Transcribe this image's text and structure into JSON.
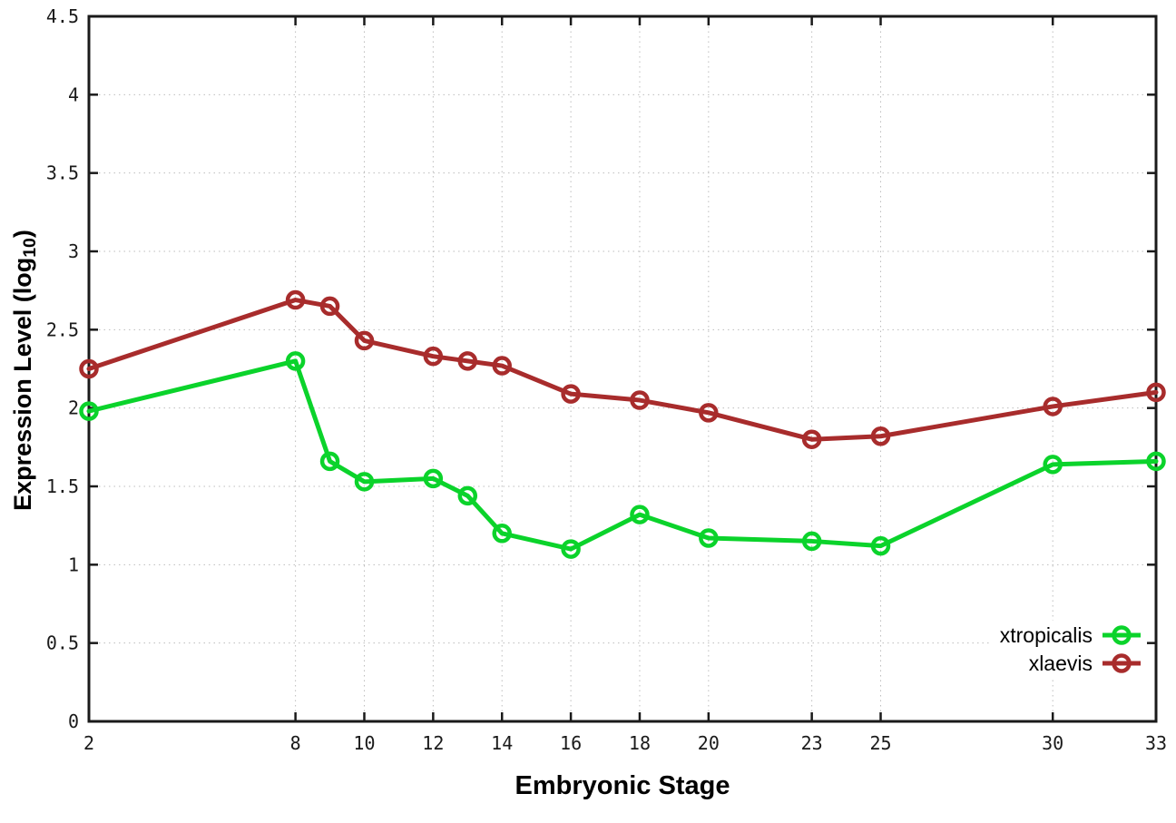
{
  "chart_data": {
    "type": "line",
    "title": "",
    "xlabel": "Embryonic Stage",
    "ylabel_pre": "Expression Level (log",
    "ylabel_sub": "10",
    "ylabel_post": ")",
    "x": [
      2,
      8,
      9,
      10,
      12,
      13,
      14,
      16,
      18,
      20,
      23,
      25,
      30,
      33
    ],
    "series": [
      {
        "name": "xtropicalis",
        "color": "#0bd32b",
        "values": [
          1.98,
          2.3,
          1.66,
          1.53,
          1.55,
          1.44,
          1.2,
          1.1,
          1.32,
          1.17,
          1.15,
          1.12,
          1.64,
          1.66
        ]
      },
      {
        "name": "xlaevis",
        "color": "#a82c2c",
        "values": [
          2.25,
          2.69,
          2.65,
          2.43,
          2.33,
          2.3,
          2.27,
          2.09,
          2.05,
          1.97,
          1.8,
          1.82,
          2.01,
          2.1
        ]
      }
    ],
    "xlim": [
      2,
      33
    ],
    "ylim": [
      0,
      4.5
    ],
    "xticks": [
      2,
      8,
      10,
      12,
      14,
      16,
      18,
      20,
      23,
      25,
      30,
      33
    ],
    "xtick_labels": [
      "2",
      "8",
      "10",
      "12",
      "14",
      "16",
      "18",
      "20",
      "23",
      "25",
      "30",
      "33"
    ],
    "yticks": [
      0,
      0.5,
      1,
      1.5,
      2,
      2.5,
      3,
      3.5,
      4,
      4.5
    ],
    "ytick_labels": [
      "0",
      "0.5",
      "1",
      "1.5",
      "2",
      "2.5",
      "3",
      "3.5",
      "4",
      "4.5"
    ],
    "grid": true,
    "legend_position": "bottom-right",
    "colors": {
      "grid": "#bdbdbd",
      "axis": "#1a1a1a",
      "background": "#ffffff",
      "text": "#1a1a1a"
    }
  }
}
